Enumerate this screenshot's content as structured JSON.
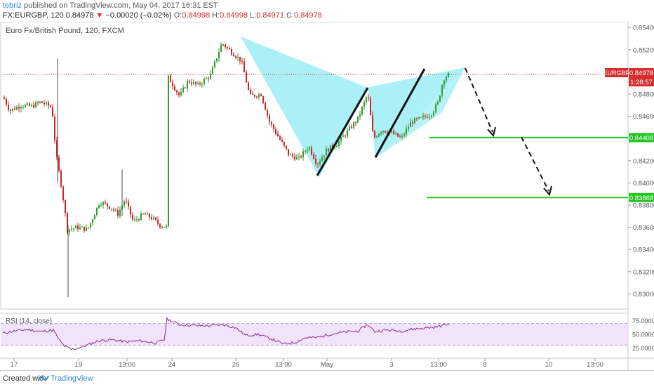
{
  "header": {
    "author": "tebriz",
    "published_text": "published on TradingView.com, May 04, 2017 16:31 EST",
    "symbol": "FX:EURGBP, 120",
    "last": "0.84978",
    "change_arrow": "▼",
    "change": "−0.00020 (−0.02%)",
    "o_label": "O:",
    "o_value": "0.84998",
    "h_label": "H:",
    "h_value": "0.84998",
    "l_label": "L:",
    "l_value": "0.84971",
    "c_label": "C:",
    "c_value": "0.84978"
  },
  "chart_data": {
    "type": "candlestick",
    "title": "Euro Fx/British Pound, 120, FXCM",
    "ylim": [
      0.8286,
      0.855
    ],
    "y_ticks": [
      "0.85400",
      "0.85200",
      "0.85000",
      "0.84800",
      "0.84600",
      "0.84400",
      "0.84200",
      "0.84000",
      "0.83800",
      "0.83600",
      "0.83400",
      "0.83200",
      "0.83000"
    ],
    "x_ticks": [
      "17",
      "19",
      "13:00",
      "24",
      "26",
      "13:00",
      "May",
      "3",
      "13:00",
      "8",
      "10",
      "13:00"
    ],
    "last_price_label": "EURGBP",
    "last_price": "0.84978",
    "countdown": "1:28:57",
    "levels": [
      {
        "label": "0.84408",
        "value": 0.84408,
        "color": "#22c522"
      },
      {
        "label": "0.83868",
        "value": 0.83868,
        "color": "#22c522"
      }
    ],
    "up_color": "#2e9e2e",
    "down_color": "#c62828",
    "pattern_fill": "#a9f0f7",
    "rsi": {
      "label": "RSI (14, close)",
      "ylim": [
        15,
        85
      ],
      "y_ticks": [
        "75.0000",
        "50.0000",
        "25.0000"
      ],
      "upper_band": 70,
      "lower_band": 30,
      "line_color": "#8e2b8e",
      "band_fill": "#f1e4fa"
    }
  },
  "footer": {
    "created_with": "Created with",
    "brand": "TradingView"
  }
}
